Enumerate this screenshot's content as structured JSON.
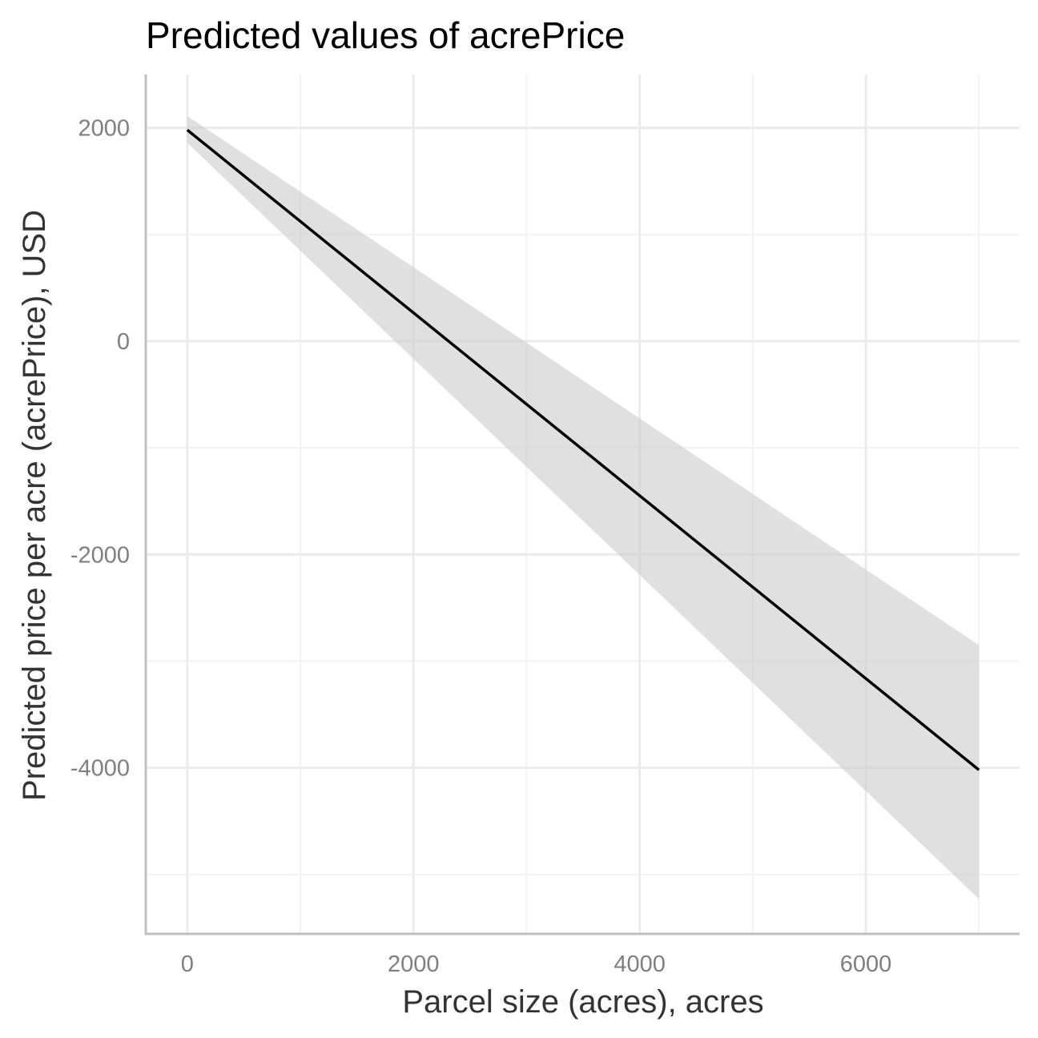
{
  "chart_data": {
    "type": "line",
    "title": "Predicted values of acrePrice",
    "xlabel": "Parcel size (acres), acres",
    "ylabel": "Predicted price per acre (acrePrice), USD",
    "xlim": [
      -360,
      7360
    ],
    "ylim": [
      -5550,
      2500
    ],
    "x_ticks": [
      0,
      2000,
      4000,
      6000
    ],
    "x_tick_labels": [
      "0",
      "2000",
      "4000",
      "6000"
    ],
    "y_ticks": [
      2000,
      0,
      -2000,
      -4000
    ],
    "y_tick_labels": [
      "2000",
      "0",
      "-2000",
      "-4000"
    ],
    "x_minor_ticks": [
      1000,
      3000,
      5000,
      7000
    ],
    "y_minor_ticks": [
      1000,
      -1000,
      -3000,
      -5000
    ],
    "grid": true,
    "legend": "none",
    "series": [
      {
        "x": [
          0,
          7000
        ],
        "y": [
          1980,
          -4020
        ],
        "ci_low": [
          1860,
          -5230
        ],
        "ci_high": [
          2110,
          -2850
        ],
        "line_color": "#000000",
        "ribbon_color": "#cccccc"
      }
    ]
  }
}
